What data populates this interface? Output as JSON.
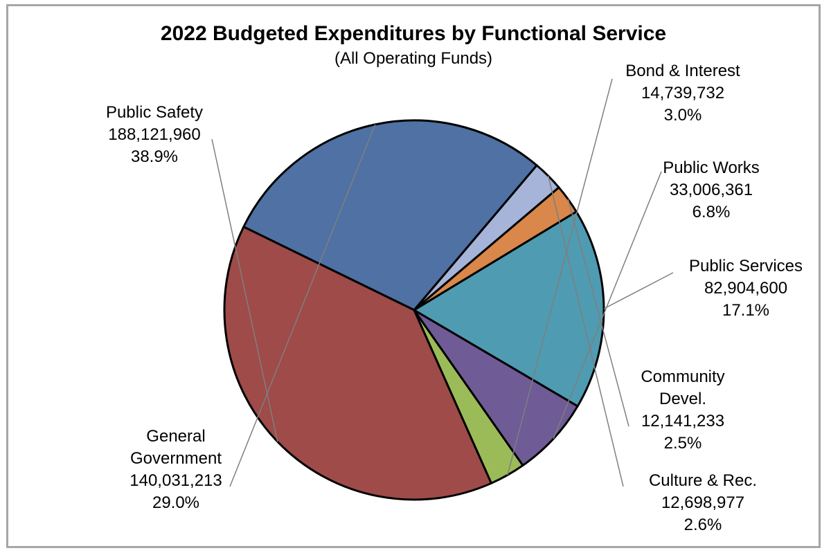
{
  "chart_data": {
    "type": "pie",
    "title": "2022 Budgeted Expenditures by Functional Service",
    "subtitle": "(All Operating Funds)",
    "slices": [
      {
        "name_lines": [
          "Bond & Interest"
        ],
        "value": 14739732,
        "value_text": "14,739,732",
        "percent": "3.0%",
        "color": "#9bbb59"
      },
      {
        "name_lines": [
          "Public Works"
        ],
        "value": 33006361,
        "value_text": "33,006,361",
        "percent": "6.8%",
        "color": "#6f5b95"
      },
      {
        "name_lines": [
          "Public Services"
        ],
        "value": 82904600,
        "value_text": "82,904,600",
        "percent": "17.1%",
        "color": "#4f9bb1"
      },
      {
        "name_lines": [
          "Community",
          "Devel."
        ],
        "value": 12141233,
        "value_text": "12,141,233",
        "percent": "2.5%",
        "color": "#d9874a"
      },
      {
        "name_lines": [
          "Culture & Rec."
        ],
        "value": 12698977,
        "value_text": "12,698,977",
        "percent": "2.6%",
        "color": "#a5b4d8"
      },
      {
        "name_lines": [
          "General",
          "Government"
        ],
        "value": 140031213,
        "value_text": "140,031,213",
        "percent": "29.0%",
        "color": "#4f71a3"
      },
      {
        "name_lines": [
          "Public Safety"
        ],
        "value": 188121960,
        "value_text": "188,121,960",
        "percent": "38.9%",
        "color": "#9e4b49"
      }
    ]
  }
}
